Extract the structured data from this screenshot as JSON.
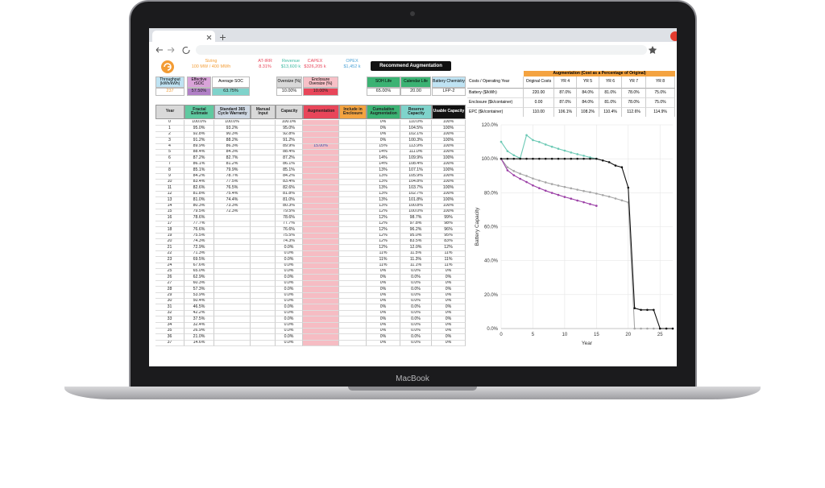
{
  "device": {
    "label": "MacBook"
  },
  "header": {
    "metrics": [
      {
        "label": "Sizing",
        "value": "100 MW / 400 MWh",
        "color": "#f39c34"
      },
      {
        "label": "AT-IRR",
        "value": "8.31%",
        "color": "#e8465a"
      },
      {
        "label": "Revenue",
        "value": "$13,600 k",
        "color": "#3cb8a0"
      },
      {
        "label": "CAPEX",
        "value": "$326,205 k",
        "color": "#e8465a"
      },
      {
        "label": "OPEX",
        "value": "$1,452 k",
        "color": "#4da3d6"
      }
    ],
    "button": "Recommend Augmentation"
  },
  "inputs": [
    {
      "label": "Throughput (kWh/kWh)",
      "value": "237"
    },
    {
      "label": "Effective rSOC",
      "value": "57.50%"
    },
    {
      "label": "Average SOC",
      "value": "63.75%"
    },
    {
      "label": "Oversize (%)",
      "value": "10.00%"
    },
    {
      "label": "Enclosure Oversize (%)",
      "value": "10.00%"
    },
    {
      "label": "SOH Life",
      "value": "65.00%"
    },
    {
      "label": "Calendar Life",
      "value": "20.00"
    },
    {
      "label": "Battery Chemistry",
      "value": "LFP-2"
    }
  ],
  "table": {
    "columns": [
      "Year",
      "Fractal Estimate",
      "Standard 365 Cycle Warranty",
      "Manual Input",
      "Capacity",
      "Augmentation",
      "Include in Enclosure",
      "Cumulative Augmentation",
      "Reserve Capacity",
      "Usable Capacity"
    ],
    "rows": [
      [
        0,
        "100.0%",
        "100.0%",
        null,
        "100.0%",
        null,
        null,
        "0%",
        "110.0%",
        "100%"
      ],
      [
        1,
        "95.0%",
        "93.2%",
        null,
        "95.0%",
        null,
        null,
        "0%",
        "104.5%",
        "100%"
      ],
      [
        2,
        "92.8%",
        "90.3%",
        null,
        "92.8%",
        null,
        null,
        "0%",
        "102.1%",
        "100%"
      ],
      [
        3,
        "91.2%",
        "88.2%",
        null,
        "91.2%",
        null,
        null,
        "0%",
        "100.3%",
        "100%"
      ],
      [
        4,
        "89.9%",
        "86.3%",
        null,
        "89.9%",
        "15.00%",
        null,
        "15%",
        "113.9%",
        "100%"
      ],
      [
        5,
        "88.4%",
        "84.3%",
        null,
        "88.4%",
        null,
        null,
        "14%",
        "111.0%",
        "100%"
      ],
      [
        6,
        "87.2%",
        "82.7%",
        null,
        "87.2%",
        null,
        null,
        "14%",
        "109.9%",
        "100%"
      ],
      [
        7,
        "86.1%",
        "81.2%",
        null,
        "86.1%",
        null,
        null,
        "14%",
        "108.4%",
        "100%"
      ],
      [
        8,
        "85.1%",
        "79.9%",
        null,
        "85.1%",
        null,
        null,
        "13%",
        "107.1%",
        "100%"
      ],
      [
        9,
        "84.2%",
        "78.7%",
        null,
        "84.2%",
        null,
        null,
        "13%",
        "105.9%",
        "100%"
      ],
      [
        10,
        "83.4%",
        "77.5%",
        null,
        "83.4%",
        null,
        null,
        "13%",
        "104.8%",
        "100%"
      ],
      [
        11,
        "82.6%",
        "76.5%",
        null,
        "82.6%",
        null,
        null,
        "13%",
        "103.7%",
        "100%"
      ],
      [
        12,
        "81.8%",
        "75.4%",
        null,
        "81.8%",
        null,
        null,
        "13%",
        "102.7%",
        "100%"
      ],
      [
        13,
        "81.0%",
        "74.4%",
        null,
        "81.0%",
        null,
        null,
        "13%",
        "101.8%",
        "100%"
      ],
      [
        14,
        "80.3%",
        "73.3%",
        null,
        "80.3%",
        null,
        null,
        "13%",
        "100.8%",
        "100%"
      ],
      [
        15,
        "79.5%",
        "72.3%",
        null,
        "79.5%",
        null,
        null,
        "12%",
        "100.0%",
        "100%"
      ],
      [
        16,
        "78.6%",
        null,
        null,
        "78.6%",
        null,
        null,
        "12%",
        "98.7%",
        "99%"
      ],
      [
        17,
        "77.7%",
        null,
        null,
        "77.7%",
        null,
        null,
        "12%",
        "97.8%",
        "98%"
      ],
      [
        18,
        "76.6%",
        null,
        null,
        "76.6%",
        null,
        null,
        "12%",
        "96.2%",
        "96%"
      ],
      [
        19,
        "75.5%",
        null,
        null,
        "75.5%",
        null,
        null,
        "12%",
        "95.0%",
        "95%"
      ],
      [
        20,
        "74.3%",
        null,
        null,
        "74.3%",
        null,
        null,
        "12%",
        "83.5%",
        "83%"
      ],
      [
        21,
        "72.9%",
        null,
        null,
        "0.0%",
        null,
        null,
        "12%",
        "12.0%",
        "12%"
      ],
      [
        22,
        "71.3%",
        null,
        null,
        "0.0%",
        null,
        null,
        "11%",
        "11.5%",
        "11%"
      ],
      [
        23,
        "69.5%",
        null,
        null,
        "0.0%",
        null,
        null,
        "11%",
        "11.3%",
        "11%"
      ],
      [
        24,
        "67.6%",
        null,
        null,
        "0.0%",
        null,
        null,
        "11%",
        "11.1%",
        "11%"
      ],
      [
        25,
        "65.0%",
        null,
        null,
        "0.0%",
        null,
        null,
        "0%",
        "0.0%",
        "0%"
      ],
      [
        26,
        "62.9%",
        null,
        null,
        "0.0%",
        null,
        null,
        "0%",
        "0.0%",
        "0%"
      ],
      [
        27,
        "60.3%",
        null,
        null,
        "0.0%",
        null,
        null,
        "0%",
        "0.0%",
        "0%"
      ],
      [
        28,
        "57.3%",
        null,
        null,
        "0.0%",
        null,
        null,
        "0%",
        "0.0%",
        "0%"
      ],
      [
        29,
        "53.9%",
        null,
        null,
        "0.0%",
        null,
        null,
        "0%",
        "0.0%",
        "0%"
      ],
      [
        30,
        "50.4%",
        null,
        null,
        "0.0%",
        null,
        null,
        "0%",
        "0.0%",
        "0%"
      ],
      [
        31,
        "46.5%",
        null,
        null,
        "0.0%",
        null,
        null,
        "0%",
        "0.0%",
        "0%"
      ],
      [
        32,
        "42.2%",
        null,
        null,
        "0.0%",
        null,
        null,
        "0%",
        "0.0%",
        "0%"
      ],
      [
        33,
        "37.5%",
        null,
        null,
        "0.0%",
        null,
        null,
        "0%",
        "0.0%",
        "0%"
      ],
      [
        34,
        "32.4%",
        null,
        null,
        "0.0%",
        null,
        null,
        "0%",
        "0.0%",
        "0%"
      ],
      [
        35,
        "26.9%",
        null,
        null,
        "0.0%",
        null,
        null,
        "0%",
        "0.0%",
        "0%"
      ],
      [
        36,
        "21.0%",
        null,
        null,
        "0.0%",
        null,
        null,
        "0%",
        "0.0%",
        "0%"
      ],
      [
        37,
        "14.6%",
        null,
        null,
        "0.0%",
        null,
        null,
        "0%",
        "0.0%",
        "0%"
      ]
    ]
  },
  "augmentation_table": {
    "title": "Augmentation (Cost as a Percentage of Original)",
    "columns": [
      "Costs / Operating Year",
      "Original Costs",
      "YR 4",
      "YR 5",
      "YR 6",
      "YR 7",
      "YR 8"
    ],
    "rows": [
      [
        "Battery ($/kWh)",
        "220.00",
        "87.0%",
        "84.0%",
        "81.0%",
        "78.0%",
        "75.0%"
      ],
      [
        "Enclosure ($k/container)",
        "0.00",
        "87.0%",
        "84.0%",
        "81.0%",
        "78.0%",
        "75.0%"
      ],
      [
        "EPC ($k/container)",
        "110.00",
        "106.1%",
        "108.2%",
        "110.4%",
        "112.6%",
        "114.9%"
      ]
    ]
  },
  "chart_data": {
    "type": "line",
    "x_label": "Year",
    "y_label": "Battery Capacity",
    "x": [
      0,
      1,
      2,
      3,
      4,
      5,
      6,
      7,
      8,
      9,
      10,
      11,
      12,
      13,
      14,
      15,
      16,
      17,
      18,
      19,
      20,
      21,
      22,
      23,
      24,
      25,
      26,
      27
    ],
    "xlim": [
      0,
      27
    ],
    "xticks": [
      0,
      5,
      10,
      15,
      20,
      25
    ],
    "ylim": [
      0,
      120
    ],
    "yticks": [
      {
        "value": 0,
        "label": "0.0%"
      },
      {
        "value": 20,
        "label": "20.0%"
      },
      {
        "value": 40,
        "label": "40.0%"
      },
      {
        "value": 60,
        "label": "60.0%"
      },
      {
        "value": 80,
        "label": "80.0%"
      },
      {
        "value": 100,
        "label": "100.0%"
      },
      {
        "value": 120,
        "label": "120.0%"
      }
    ],
    "grid": true,
    "series": [
      {
        "color": "#a6a6a6",
        "values": [
          100,
          95,
          92.8,
          91.2,
          89.9,
          88.4,
          87.2,
          86.1,
          85.1,
          84.2,
          83.4,
          82.6,
          81.8,
          81,
          80.3,
          79.5,
          78.6,
          77.7,
          76.6,
          75.5,
          74.3,
          0,
          0,
          0,
          0,
          0,
          0,
          0
        ]
      },
      {
        "color": "#9b3fa6",
        "values": [
          100,
          93.2,
          90.3,
          88.2,
          86.3,
          84.3,
          82.7,
          81.2,
          79.9,
          78.7,
          77.5,
          76.5,
          75.4,
          74.4,
          73.3,
          72.3,
          null,
          null,
          null,
          null,
          null,
          null,
          null,
          null,
          null,
          null,
          null,
          null
        ]
      },
      {
        "color": "#6cc9b5",
        "values": [
          110,
          104.5,
          102.1,
          100.3,
          113.9,
          111,
          109.9,
          108.4,
          107.1,
          105.9,
          104.8,
          103.7,
          102.7,
          101.8,
          100.8,
          100,
          null,
          null,
          null,
          null,
          null,
          null,
          null,
          null,
          null,
          null,
          null,
          null
        ]
      },
      {
        "color": "#111111",
        "values": [
          100,
          100,
          100,
          100,
          100,
          100,
          100,
          100,
          100,
          100,
          100,
          100,
          100,
          100,
          100,
          100,
          99,
          98,
          96,
          95,
          83,
          12,
          11,
          11,
          11,
          0,
          0,
          0
        ]
      }
    ]
  }
}
